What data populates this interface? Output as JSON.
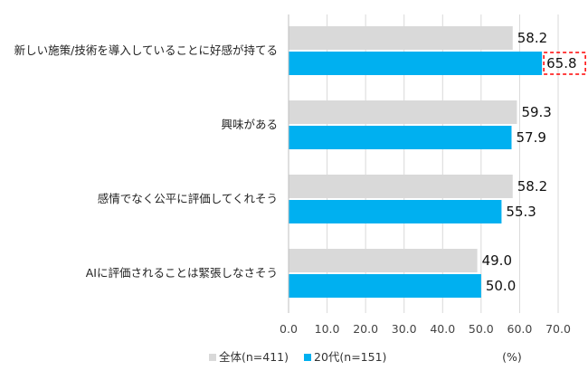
{
  "chart_data": {
    "type": "bar",
    "orientation": "horizontal",
    "categories": [
      "新しい施策/技術を導入していることに好感が持てる",
      "興味がある",
      "感情でなく公平に評価してくれそう",
      "AIに評価されることは緊張しなさそう"
    ],
    "series": [
      {
        "name": "全体(n=411)",
        "values": [
          58.2,
          59.3,
          58.2,
          49.0
        ],
        "color": "#d9d9d9"
      },
      {
        "name": "20代(n=151)",
        "values": [
          65.8,
          57.9,
          55.3,
          50.0
        ],
        "color": "#00b0f0"
      }
    ],
    "value_labels": [
      [
        "58.2",
        "59.3",
        "58.2",
        "49.0"
      ],
      [
        "65.8",
        "57.9",
        "55.3",
        "50.0"
      ]
    ],
    "x_ticks": [
      "0.0",
      "10.0",
      "20.0",
      "30.0",
      "40.0",
      "50.0",
      "60.0",
      "70.0"
    ],
    "xlim": [
      0,
      70
    ],
    "unit_label": "(%)",
    "highlight": {
      "series": 1,
      "category": 0,
      "color": "#ff0000",
      "style": "dashed box"
    },
    "grid": "vertical",
    "legend_position": "bottom-left",
    "colors": {
      "grid": "#d9d9d9",
      "axis": "#bfbfbf"
    }
  }
}
